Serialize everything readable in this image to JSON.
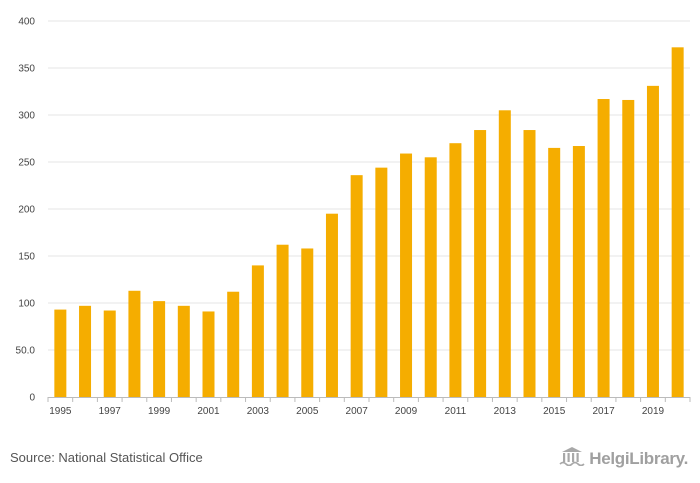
{
  "chart_data": {
    "type": "bar",
    "title": "",
    "xlabel": "",
    "ylabel": "",
    "ylim": [
      0,
      400
    ],
    "yticks": [
      "0",
      "50.0",
      "100",
      "150",
      "200",
      "250",
      "300",
      "350",
      "400"
    ],
    "categories": [
      "1995",
      "1996",
      "1997",
      "1998",
      "1999",
      "2000",
      "2001",
      "2002",
      "2003",
      "2004",
      "2005",
      "2006",
      "2007",
      "2008",
      "2009",
      "2010",
      "2011",
      "2012",
      "2013",
      "2014",
      "2015",
      "2016",
      "2017",
      "2018",
      "2019",
      "2020"
    ],
    "xtick_labels": [
      "1995",
      "1997",
      "1999",
      "2001",
      "2003",
      "2005",
      "2007",
      "2009",
      "2011",
      "2013",
      "2015",
      "2017",
      "2019"
    ],
    "values": [
      93,
      97,
      92,
      113,
      102,
      97,
      91,
      112,
      140,
      162,
      158,
      195,
      236,
      244,
      259,
      255,
      270,
      284,
      305,
      284,
      265,
      267,
      317,
      316,
      331,
      372
    ],
    "bar_color": "#f5ad00",
    "grid": true
  },
  "footer": {
    "source": "Source: National Statistical Office",
    "logo_text": "HelgiLibrary",
    "logo_dot": "."
  },
  "colors": {
    "bar": "#f5ad00",
    "grid": "#e6e6e6",
    "axis": "#bbbbbb",
    "label": "#444444"
  },
  "icons": {
    "logo": "library-building-icon"
  }
}
